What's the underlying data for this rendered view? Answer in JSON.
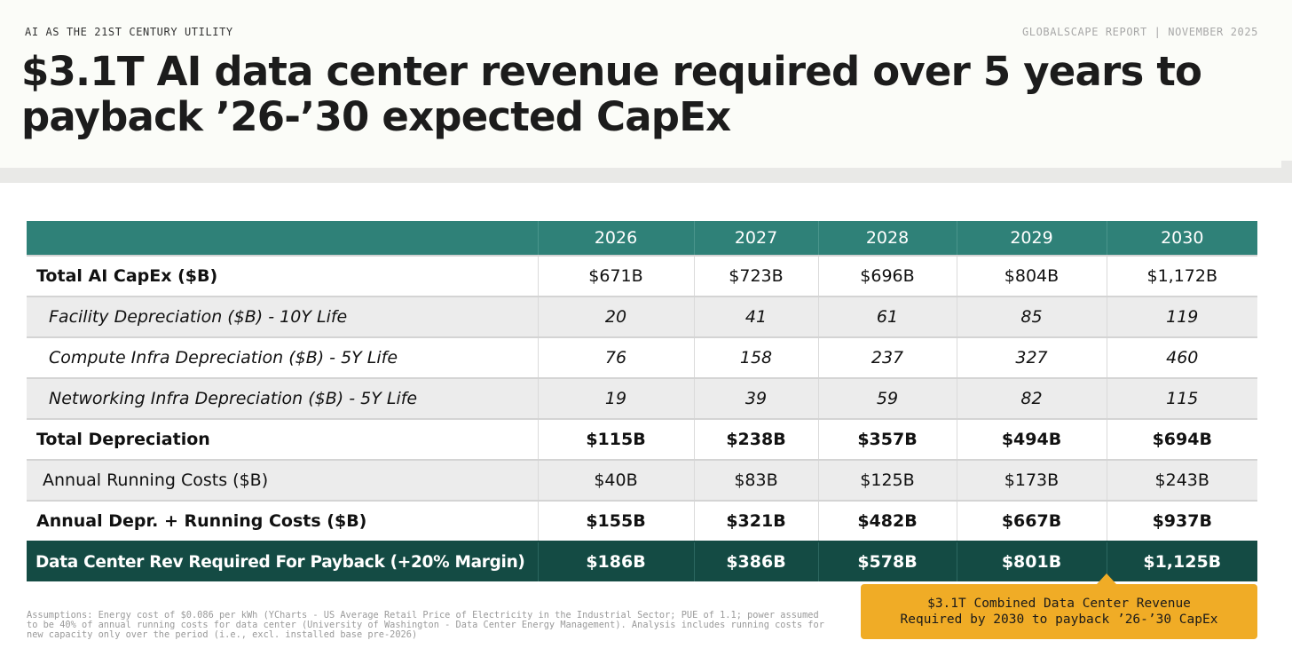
{
  "header": {
    "kicker": "AI AS THE 21ST CENTURY UTILITY",
    "report_tag": "GLOBALSCAPE REPORT | NOVEMBER 2025",
    "title": "$3.1T AI data center revenue required over 5 years to payback ’26-’30 expected CapEx"
  },
  "table": {
    "columns": [
      "",
      "2026",
      "2027",
      "2028",
      "2029",
      "2030"
    ],
    "rows": [
      {
        "label": "Total AI CapEx ($B)",
        "values": [
          "$671B",
          "$723B",
          "$696B",
          "$804B",
          "$1,172B"
        ]
      },
      {
        "label": "Facility Depreciation ($B) - 10Y Life",
        "values": [
          "20",
          "41",
          "61",
          "85",
          "119"
        ]
      },
      {
        "label": "Compute Infra Depreciation ($B) - 5Y Life",
        "values": [
          "76",
          "158",
          "237",
          "327",
          "460"
        ]
      },
      {
        "label": "Networking Infra Depreciation ($B) - 5Y Life",
        "values": [
          "19",
          "39",
          "59",
          "82",
          "115"
        ]
      },
      {
        "label": "Total Depreciation",
        "values": [
          "$115B",
          "$238B",
          "$357B",
          "$494B",
          "$694B"
        ]
      },
      {
        "label": "Annual Running Costs ($B)",
        "values": [
          "$40B",
          "$83B",
          "$125B",
          "$173B",
          "$243B"
        ]
      },
      {
        "label": "Annual Depr. + Running Costs ($B)",
        "values": [
          "$155B",
          "$321B",
          "$482B",
          "$667B",
          "$937B"
        ]
      },
      {
        "label": "Data Center Rev Required For Payback (+20% Margin)",
        "values": [
          "$186B",
          "$386B",
          "$578B",
          "$801B",
          "$1,125B"
        ]
      }
    ]
  },
  "assumptions": "Assumptions: Energy cost of $0.086 per kWh (YCharts - US Average Retail Price of Electricity in the Industrial Sector; PUE of 1.1; power assumed to be 40% of annual running costs for data center (University of Washington - Data Center Energy Management). Analysis includes running costs for new capacity only over the period (i.e., excl. installed base pre-2026)",
  "callout": {
    "line1": "$3.1T Combined Data Center Revenue",
    "line2": "Required by 2030 to payback ’26-’30 CapEx"
  },
  "colors": {
    "header_teal": "#2f8178",
    "final_row_dark_teal": "#144b44",
    "callout_orange": "#f0ac26",
    "row_shade_gray": "#ececec"
  }
}
